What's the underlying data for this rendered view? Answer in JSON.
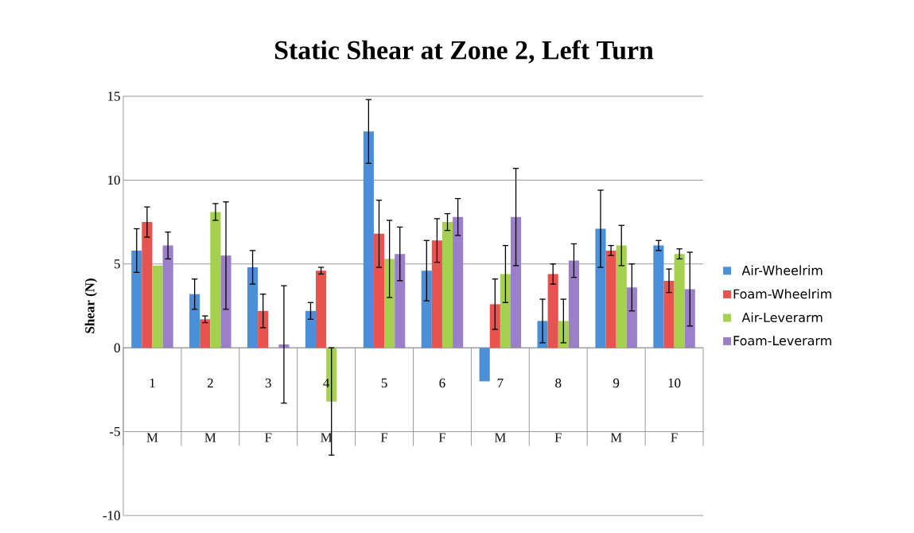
{
  "chart_data": {
    "type": "bar",
    "title": "Static Shear at Zone 2, Left Turn",
    "ylabel": "Shear (N)",
    "categories": [
      "1",
      "2",
      "3",
      "4",
      "5",
      "6",
      "7",
      "8",
      "9",
      "10"
    ],
    "annotations": [
      "M",
      "M",
      "F",
      "M",
      "F",
      "F",
      "M",
      "F",
      "M",
      "F"
    ],
    "series": [
      {
        "name": "Air-Wheelrim",
        "color": "#4a8fd8",
        "values": [
          5.8,
          3.2,
          4.8,
          2.2,
          12.9,
          4.6,
          -2.0,
          1.6,
          7.1,
          6.1
        ],
        "errors": [
          1.3,
          0.9,
          1.0,
          0.5,
          1.9,
          1.8,
          null,
          1.3,
          2.3,
          0.3
        ]
      },
      {
        "name": "Foam-Wheelrim",
        "color": "#e8534f",
        "values": [
          7.5,
          1.7,
          2.2,
          4.6,
          6.8,
          6.4,
          2.6,
          4.4,
          5.8,
          4.0
        ],
        "errors": [
          0.9,
          0.2,
          1.0,
          0.2,
          2.0,
          1.3,
          1.5,
          0.6,
          0.3,
          0.7
        ]
      },
      {
        "name": "Air-Leverarm",
        "color": "#a6d050",
        "values": [
          4.9,
          8.1,
          null,
          -3.2,
          5.3,
          7.5,
          4.4,
          1.6,
          6.1,
          5.6
        ],
        "errors": [
          null,
          0.5,
          null,
          3.2,
          2.3,
          0.5,
          1.7,
          1.3,
          1.2,
          0.3
        ]
      },
      {
        "name": "Foam-Leverarm",
        "color": "#9b7fc8",
        "values": [
          6.1,
          5.5,
          0.2,
          null,
          5.6,
          7.8,
          7.8,
          5.2,
          3.6,
          3.5
        ],
        "errors": [
          0.8,
          3.2,
          3.5,
          null,
          1.6,
          1.1,
          2.9,
          1.0,
          1.4,
          2.2
        ]
      }
    ],
    "ylim": [
      -10,
      15
    ],
    "yticks": [
      -10,
      -5,
      0,
      5,
      10,
      15
    ],
    "grid": "y",
    "legend": "right"
  }
}
